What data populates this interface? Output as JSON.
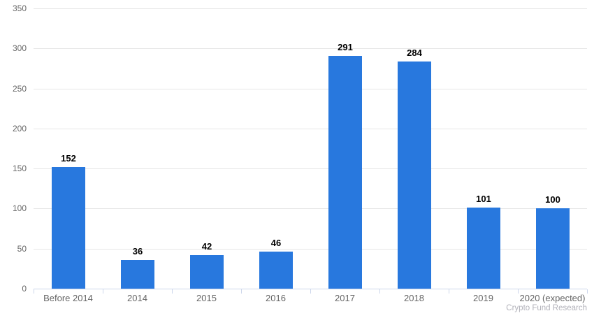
{
  "chart_data": {
    "type": "bar",
    "categories": [
      "Before 2014",
      "2014",
      "2015",
      "2016",
      "2017",
      "2018",
      "2019",
      "2020 (expected)"
    ],
    "values": [
      152,
      36,
      42,
      46,
      291,
      284,
      101,
      100
    ],
    "title": "",
    "xlabel": "",
    "ylabel": "",
    "ylim": [
      0,
      350
    ],
    "yticks": [
      0,
      50,
      100,
      150,
      200,
      250,
      300,
      350
    ],
    "grid": true,
    "legend": "none",
    "source": "Crypto Fund Research",
    "colors": {
      "bar": "#2878DE",
      "gridline": "#e6e6e6",
      "axis_line": "#ccd6eb",
      "tick_label": "#666666",
      "value_label": "#000000",
      "source_text": "#b2b2ba"
    }
  }
}
